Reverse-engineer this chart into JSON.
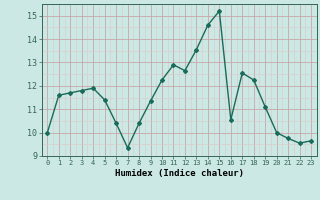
{
  "x": [
    0,
    1,
    2,
    3,
    4,
    5,
    6,
    7,
    8,
    9,
    10,
    11,
    12,
    13,
    14,
    15,
    16,
    17,
    18,
    19,
    20,
    21,
    22,
    23
  ],
  "y": [
    10.0,
    11.6,
    11.7,
    11.8,
    11.9,
    11.4,
    10.4,
    9.35,
    10.4,
    11.35,
    12.25,
    12.9,
    12.65,
    13.55,
    14.6,
    15.2,
    10.55,
    12.55,
    12.25,
    11.1,
    10.0,
    9.75,
    9.55,
    9.65
  ],
  "line_color": "#1a6b5a",
  "marker": "D",
  "markersize": 2.0,
  "linewidth": 1.0,
  "bg_color": "#cce8e4",
  "plot_bg_color": "#cce8e4",
  "xlabel": "Humidex (Indice chaleur)",
  "ylabel": "",
  "title": "",
  "xlim": [
    -0.5,
    23.5
  ],
  "ylim": [
    9.0,
    15.5
  ],
  "yticks": [
    9,
    10,
    11,
    12,
    13,
    14,
    15
  ],
  "xticks": [
    0,
    1,
    2,
    3,
    4,
    5,
    6,
    7,
    8,
    9,
    10,
    11,
    12,
    13,
    14,
    15,
    16,
    17,
    18,
    19,
    20,
    21,
    22,
    23
  ],
  "major_grid_color": "#c8a8a8",
  "minor_grid_color": "#dcc8c8",
  "spine_color": "#336655",
  "tick_color": "#336655",
  "label_color": "#000000"
}
